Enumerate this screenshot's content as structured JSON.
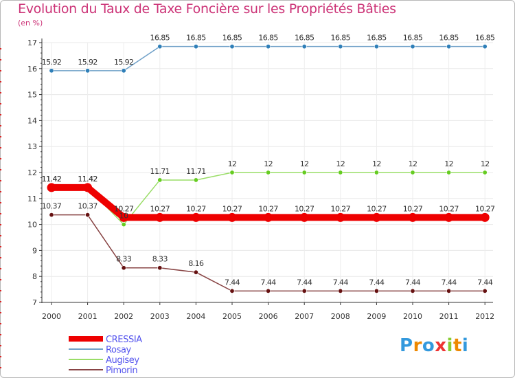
{
  "chart_data": {
    "type": "line",
    "title": "Evolution du Taux de Taxe Foncière sur les Propriétés Bâties",
    "unit_label": "(en %)",
    "x": [
      "2000",
      "2001",
      "2002",
      "2003",
      "2004",
      "2005",
      "2006",
      "2007",
      "2008",
      "2009",
      "2010",
      "2011",
      "2012"
    ],
    "ylim": [
      7,
      17
    ],
    "yticks": [
      7,
      8,
      9,
      10,
      11,
      12,
      13,
      14,
      15,
      16,
      17
    ],
    "series": [
      {
        "name": "Rosay",
        "color": "#6fa0c8",
        "marker": "#2f7fb8",
        "values": [
          15.92,
          15.92,
          15.92,
          16.85,
          16.85,
          16.85,
          16.85,
          16.85,
          16.85,
          16.85,
          16.85,
          16.85,
          16.85
        ],
        "labels": [
          "15.92",
          "15.92",
          "15.92",
          "16.85",
          "16.85",
          "16.85",
          "16.85",
          "16.85",
          "16.85",
          "16.85",
          "16.85",
          "16.85",
          "16.85"
        ]
      },
      {
        "name": "Augisey",
        "color": "#99dd66",
        "marker": "#66cc22",
        "values": [
          11.42,
          11.42,
          10,
          11.71,
          11.71,
          12,
          12,
          12,
          12,
          12,
          12,
          12,
          12
        ],
        "labels": [
          "11.42",
          "11.42",
          "10",
          "11.71",
          "11.71",
          "12",
          "12",
          "12",
          "12",
          "12",
          "12",
          "12",
          "12"
        ]
      },
      {
        "name": "Pimorin",
        "color": "#884444",
        "marker": "#661111",
        "values": [
          10.37,
          10.37,
          8.33,
          8.33,
          8.16,
          7.44,
          7.44,
          7.44,
          7.44,
          7.44,
          7.44,
          7.44,
          7.44
        ],
        "labels": [
          "10.37",
          "10.37",
          "8.33",
          "8.33",
          "8.16",
          "7.44",
          "7.44",
          "7.44",
          "7.44",
          "7.44",
          "7.44",
          "7.44",
          "7.44"
        ]
      },
      {
        "name": "CRESSIA",
        "color": "#ee0000",
        "marker": "#ee0000",
        "highlight": true,
        "values": [
          11.42,
          11.42,
          10.27,
          10.27,
          10.27,
          10.27,
          10.27,
          10.27,
          10.27,
          10.27,
          10.27,
          10.27,
          10.27
        ],
        "labels": [
          "11.42",
          "11.42",
          "10.27",
          "10.27",
          "10.27",
          "10.27",
          "10.27",
          "10.27",
          "10.27",
          "10.27",
          "10.27",
          "10.27",
          "10.27"
        ]
      }
    ],
    "legend": {
      "position": "bottom-left",
      "entries": [
        {
          "name": "CRESSIA",
          "color": "#ee0000",
          "text_color": "#5555ee"
        },
        {
          "name": "Rosay",
          "color": "#6fa0c8",
          "text_color": "#5555ee"
        },
        {
          "name": "Augisey",
          "color": "#99dd66",
          "text_color": "#5555ee"
        },
        {
          "name": "Pimorin",
          "color": "#884444",
          "text_color": "#5555ee"
        }
      ]
    }
  },
  "brand": {
    "letters": [
      "P",
      "r",
      "o",
      "x",
      "i",
      "t",
      "i"
    ],
    "colors": [
      "#3399dd",
      "#ee8800",
      "#3399dd",
      "#ee3333",
      "#88cc33",
      "#ee8800",
      "#3399dd"
    ]
  }
}
